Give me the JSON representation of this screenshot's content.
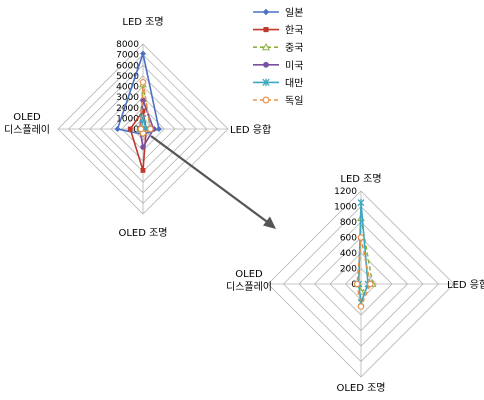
{
  "legend": {
    "items": [
      {
        "name": "일본",
        "color": "#4a72c4",
        "marker": "diamond",
        "dash": false
      },
      {
        "name": "한국",
        "color": "#c0392b",
        "marker": "square",
        "dash": false
      },
      {
        "name": "중국",
        "color": "#8bb23c",
        "marker": "triangle",
        "dash": true
      },
      {
        "name": "미국",
        "color": "#7b4fa0",
        "marker": "circle",
        "dash": false
      },
      {
        "name": "대만",
        "color": "#3ea8c0",
        "marker": "star",
        "dash": false
      },
      {
        "name": "독일",
        "color": "#e8904a",
        "marker": "circle-open",
        "dash": true
      }
    ]
  },
  "chart_data": [
    {
      "type": "radar",
      "title": "",
      "axes": [
        "LED 조명",
        "LED 응합",
        "OLED 조명",
        "OLED 디스플레이"
      ],
      "rlim": [
        0,
        8000
      ],
      "ticks": [
        "0",
        "1000",
        "2000",
        "3000",
        "4000",
        "5000",
        "6000",
        "7000",
        "8000"
      ],
      "series": [
        {
          "name": "일본",
          "values": [
            7100,
            1500,
            500,
            2400
          ]
        },
        {
          "name": "한국",
          "values": [
            1700,
            300,
            3900,
            1200
          ]
        },
        {
          "name": "중국",
          "values": [
            4200,
            700,
            300,
            300
          ]
        },
        {
          "name": "미국",
          "values": [
            2700,
            1000,
            1700,
            300
          ]
        },
        {
          "name": "대만",
          "values": [
            1000,
            300,
            100,
            200
          ]
        },
        {
          "name": "독일",
          "values": [
            4400,
            700,
            400,
            200
          ]
        }
      ]
    },
    {
      "type": "radar",
      "title": "",
      "axes": [
        "LED 조명",
        "LED 응합",
        "OLED 조명",
        "OLED 디스플레이"
      ],
      "rlim": [
        0,
        1200
      ],
      "ticks": [
        "0",
        "200",
        "400",
        "600",
        "800",
        "1000",
        "1200"
      ],
      "series": [
        {
          "name": "중국",
          "values": [
            850,
            150,
            100,
            30
          ]
        },
        {
          "name": "대만",
          "values": [
            1050,
            90,
            240,
            30
          ]
        },
        {
          "name": "독일",
          "values": [
            600,
            120,
            290,
            50
          ]
        }
      ]
    }
  ]
}
